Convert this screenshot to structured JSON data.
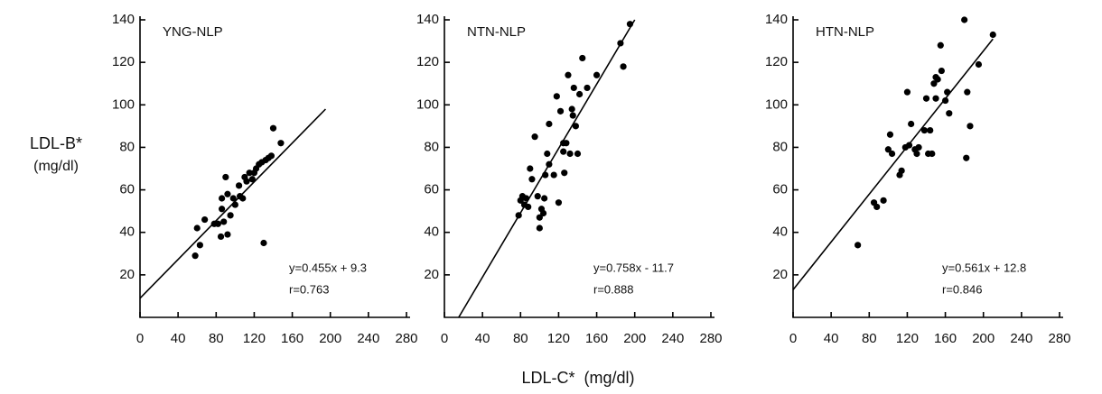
{
  "ylabel": "LDL-B*",
  "ylabel_units": "(mg/dl)",
  "xlabel": "LDL-C*  (mg/dl)",
  "chart_data": [
    {
      "type": "scatter",
      "title": "YNG-NLP",
      "annotations": [
        "y=0.455x + 9.3",
        "r=0.763"
      ],
      "xlim": [
        0,
        280
      ],
      "ylim": [
        0,
        140
      ],
      "xticks": [
        0,
        40,
        80,
        120,
        160,
        200,
        240,
        280
      ],
      "yticks": [
        20,
        40,
        60,
        80,
        100,
        120,
        140
      ],
      "series": [
        {
          "type": "scatter",
          "color": "#000000",
          "x": [
            58,
            60,
            63,
            68,
            78,
            82,
            85,
            86,
            86,
            88,
            90,
            92,
            92,
            95,
            98,
            100,
            104,
            105,
            108,
            110,
            112,
            115,
            118,
            120,
            122,
            125,
            128,
            130,
            132,
            135,
            138,
            140,
            148
          ],
          "values": [
            29,
            42,
            34,
            46,
            44,
            44,
            38,
            51,
            56,
            45,
            66,
            39,
            58,
            48,
            56,
            53,
            62,
            57,
            56,
            66,
            64,
            68,
            65,
            68,
            70,
            72,
            73,
            35,
            74,
            75,
            76,
            89,
            82
          ]
        },
        {
          "type": "line",
          "color": "#000000",
          "x": [
            0,
            195
          ],
          "values": [
            9,
            98
          ]
        }
      ]
    },
    {
      "type": "scatter",
      "title": "NTN-NLP",
      "annotations": [
        "y=0.758x - 11.7",
        "r=0.888"
      ],
      "xlim": [
        0,
        280
      ],
      "ylim": [
        0,
        140
      ],
      "xticks": [
        0,
        40,
        80,
        120,
        160,
        200,
        240,
        280
      ],
      "yticks": [
        20,
        40,
        60,
        80,
        100,
        120,
        140
      ],
      "series": [
        {
          "type": "scatter",
          "color": "#000000",
          "x": [
            78,
            80,
            82,
            84,
            86,
            88,
            90,
            92,
            95,
            98,
            100,
            100,
            102,
            104,
            105,
            106,
            108,
            110,
            110,
            115,
            118,
            120,
            122,
            125,
            125,
            126,
            128,
            130,
            132,
            134,
            135,
            136,
            138,
            140,
            142,
            145,
            150,
            160,
            185,
            188,
            195
          ],
          "values": [
            48,
            55,
            57,
            53,
            56,
            52,
            70,
            65,
            85,
            57,
            42,
            47,
            51,
            49,
            56,
            67,
            77,
            72,
            91,
            67,
            104,
            54,
            97,
            78,
            82,
            68,
            82,
            114,
            77,
            98,
            95,
            108,
            90,
            77,
            105,
            122,
            108,
            114,
            129,
            118,
            138
          ]
        },
        {
          "type": "line",
          "color": "#000000",
          "x": [
            15,
            200
          ],
          "values": [
            0,
            140
          ]
        }
      ]
    },
    {
      "type": "scatter",
      "title": "HTN-NLP",
      "annotations": [
        "y=0.561x + 12.8",
        "r=0.846"
      ],
      "xlim": [
        0,
        280
      ],
      "ylim": [
        0,
        140
      ],
      "xticks": [
        0,
        40,
        80,
        120,
        160,
        200,
        240,
        280
      ],
      "yticks": [
        20,
        40,
        60,
        80,
        100,
        120,
        140
      ],
      "series": [
        {
          "type": "scatter",
          "color": "#000000",
          "x": [
            68,
            85,
            88,
            95,
            100,
            102,
            104,
            112,
            114,
            118,
            120,
            122,
            124,
            128,
            130,
            132,
            138,
            140,
            142,
            144,
            146,
            148,
            150,
            150,
            152,
            155,
            156,
            160,
            162,
            164,
            180,
            182,
            183,
            186,
            195,
            210
          ],
          "values": [
            34,
            54,
            52,
            55,
            79,
            86,
            77,
            67,
            69,
            80,
            106,
            81,
            91,
            79,
            77,
            80,
            88,
            103,
            77,
            88,
            77,
            110,
            113,
            103,
            112,
            128,
            116,
            102,
            106,
            96,
            140,
            75,
            106,
            90,
            119,
            133
          ]
        },
        {
          "type": "line",
          "color": "#000000",
          "x": [
            0,
            210
          ],
          "values": [
            13,
            131
          ]
        }
      ]
    }
  ]
}
